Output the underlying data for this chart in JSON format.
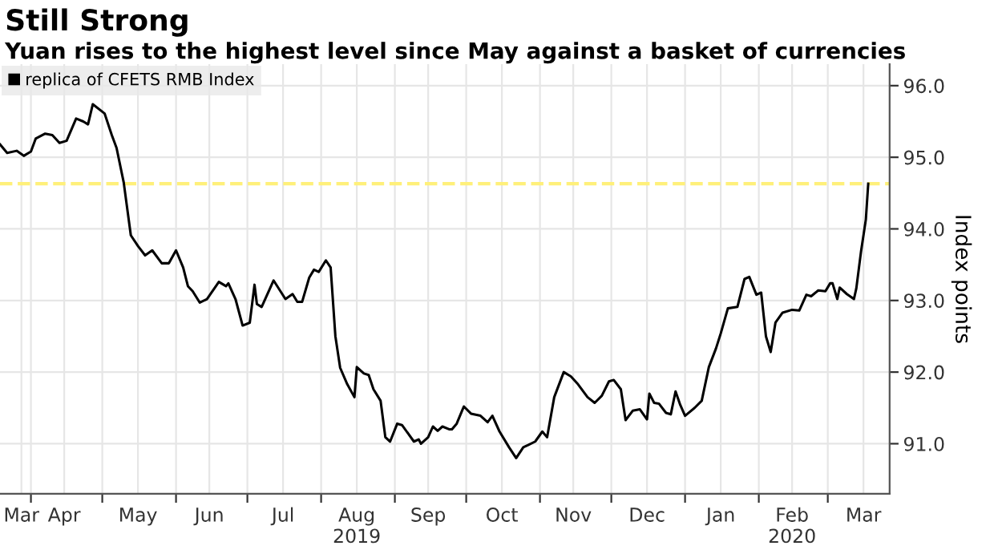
{
  "chart_data": {
    "type": "line",
    "title": "Still Strong",
    "subtitle": "Yuan rises to the highest level since May against a basket of currencies",
    "ylabel": "Index points",
    "x": [
      "2019-03-19",
      "2019-03-22",
      "2019-03-26",
      "2019-03-29",
      "2019-04-01",
      "2019-04-03",
      "2019-04-07",
      "2019-04-10",
      "2019-04-13",
      "2019-04-16",
      "2019-04-20",
      "2019-04-23",
      "2019-04-25",
      "2019-04-27",
      "2019-05-02",
      "2019-05-05",
      "2019-05-07",
      "2019-05-10",
      "2019-05-13",
      "2019-05-16",
      "2019-05-19",
      "2019-05-22",
      "2019-05-26",
      "2019-05-29",
      "2019-06-01",
      "2019-06-04",
      "2019-06-06",
      "2019-06-08",
      "2019-06-11",
      "2019-06-14",
      "2019-06-19",
      "2019-06-22",
      "2019-06-23",
      "2019-06-26",
      "2019-06-29",
      "2019-07-02",
      "2019-07-04",
      "2019-07-05",
      "2019-07-07",
      "2019-07-12",
      "2019-07-17",
      "2019-07-20",
      "2019-07-22",
      "2019-07-24",
      "2019-07-27",
      "2019-07-29",
      "2019-07-31",
      "2019-08-03",
      "2019-08-05",
      "2019-08-07",
      "2019-08-09",
      "2019-08-12",
      "2019-08-15",
      "2019-08-16",
      "2019-08-19",
      "2019-08-21",
      "2019-08-23",
      "2019-08-26",
      "2019-08-28",
      "2019-08-30",
      "2019-09-02",
      "2019-09-04",
      "2019-09-09",
      "2019-09-11",
      "2019-09-12",
      "2019-09-15",
      "2019-09-17",
      "2019-09-19",
      "2019-09-21",
      "2019-09-24",
      "2019-09-25",
      "2019-09-27",
      "2019-09-30",
      "2019-10-03",
      "2019-10-07",
      "2019-10-10",
      "2019-10-12",
      "2019-10-15",
      "2019-10-19",
      "2019-10-22",
      "2019-10-25",
      "2019-10-27",
      "2019-10-30",
      "2019-11-02",
      "2019-11-04",
      "2019-11-07",
      "2019-11-11",
      "2019-11-14",
      "2019-11-17",
      "2019-11-21",
      "2019-11-24",
      "2019-11-27",
      "2019-11-30",
      "2019-12-02",
      "2019-12-05",
      "2019-12-07",
      "2019-12-10",
      "2019-12-13",
      "2019-12-16",
      "2019-12-17",
      "2019-12-19",
      "2019-12-21",
      "2019-12-24",
      "2019-12-26",
      "2019-12-28",
      "2019-12-30",
      "2020-01-01",
      "2020-01-05",
      "2020-01-08",
      "2020-01-11",
      "2020-01-14",
      "2020-01-16",
      "2020-01-19",
      "2020-01-23",
      "2020-01-26",
      "2020-01-28",
      "2020-01-31",
      "2020-02-02",
      "2020-02-04",
      "2020-02-06",
      "2020-02-08",
      "2020-02-11",
      "2020-02-15",
      "2020-02-18",
      "2020-02-21",
      "2020-02-23",
      "2020-02-26",
      "2020-02-29",
      "2020-03-02",
      "2020-03-03",
      "2020-03-05",
      "2020-03-06",
      "2020-03-09",
      "2020-03-12",
      "2020-03-13",
      "2020-03-15",
      "2020-03-17",
      "2020-03-18"
    ],
    "series": [
      {
        "name": "replica of CFETS RMB Index",
        "color": "#000000",
        "values": [
          95.18,
          95.06,
          95.09,
          95.02,
          95.08,
          95.26,
          95.33,
          95.31,
          95.2,
          95.23,
          95.54,
          95.5,
          95.46,
          95.74,
          95.61,
          95.31,
          95.13,
          94.65,
          93.91,
          93.76,
          93.63,
          93.7,
          93.52,
          93.52,
          93.7,
          93.46,
          93.2,
          93.13,
          92.97,
          93.02,
          93.26,
          93.2,
          93.24,
          93.02,
          92.65,
          92.69,
          93.22,
          92.95,
          92.91,
          93.28,
          93.02,
          93.09,
          92.98,
          92.98,
          93.32,
          93.43,
          93.4,
          93.56,
          93.46,
          92.5,
          92.06,
          91.83,
          91.65,
          92.07,
          91.98,
          91.96,
          91.76,
          91.6,
          91.09,
          91.03,
          91.28,
          91.26,
          91.03,
          91.06,
          91.0,
          91.09,
          91.24,
          91.18,
          91.24,
          91.2,
          91.2,
          91.28,
          91.52,
          91.42,
          91.39,
          91.3,
          91.39,
          91.17,
          90.95,
          90.8,
          90.95,
          90.98,
          91.03,
          91.17,
          91.09,
          91.65,
          92.0,
          91.94,
          91.83,
          91.65,
          91.57,
          91.67,
          91.87,
          91.89,
          91.76,
          91.33,
          91.46,
          91.48,
          91.34,
          91.7,
          91.57,
          91.56,
          91.43,
          91.41,
          91.73,
          91.54,
          91.39,
          91.5,
          91.6,
          92.07,
          92.33,
          92.54,
          92.89,
          92.91,
          93.3,
          93.33,
          93.08,
          93.11,
          92.5,
          92.28,
          92.69,
          92.83,
          92.87,
          92.86,
          93.08,
          93.06,
          93.14,
          93.13,
          93.24,
          93.24,
          93.02,
          93.18,
          93.09,
          93.02,
          93.17,
          93.69,
          94.13,
          94.63
        ]
      }
    ],
    "xlim": [
      "2019-03-19",
      "2020-03-27"
    ],
    "xticks": [
      {
        "value": "2019-03-28",
        "label": "Mar"
      },
      {
        "value": "2019-04-01",
        "label": null
      },
      {
        "value": "2019-04-15",
        "label": "Apr"
      },
      {
        "value": "2019-05-01",
        "label": null
      },
      {
        "value": "2019-05-16",
        "label": "May"
      },
      {
        "value": "2019-06-01",
        "label": null
      },
      {
        "value": "2019-06-15",
        "label": "Jun"
      },
      {
        "value": "2019-07-01",
        "label": null
      },
      {
        "value": "2019-07-16",
        "label": "Jul"
      },
      {
        "value": "2019-08-01",
        "label": null
      },
      {
        "value": "2019-08-16",
        "label": "Aug\n2019"
      },
      {
        "value": "2019-09-01",
        "label": null
      },
      {
        "value": "2019-09-15",
        "label": "Sep"
      },
      {
        "value": "2019-10-01",
        "label": null
      },
      {
        "value": "2019-10-16",
        "label": "Oct"
      },
      {
        "value": "2019-11-01",
        "label": null
      },
      {
        "value": "2019-11-15",
        "label": "Nov"
      },
      {
        "value": "2019-12-01",
        "label": null
      },
      {
        "value": "2019-12-16",
        "label": "Dec"
      },
      {
        "value": "2020-01-01",
        "label": null
      },
      {
        "value": "2020-01-16",
        "label": "Jan"
      },
      {
        "value": "2020-02-01",
        "label": null
      },
      {
        "value": "2020-02-15",
        "label": "Feb\n2020"
      },
      {
        "value": "2020-03-01",
        "label": null
      },
      {
        "value": "2020-03-16",
        "label": "Mar"
      }
    ],
    "ylim": [
      90.3,
      96.3
    ],
    "yticks": [
      {
        "value": 91,
        "label": "91.0"
      },
      {
        "value": 92,
        "label": "92.0"
      },
      {
        "value": 93,
        "label": "93.0"
      },
      {
        "value": 94,
        "label": "94.0"
      },
      {
        "value": 95,
        "label": "95.0"
      },
      {
        "value": 96,
        "label": "96.0"
      }
    ],
    "ref_lines": [
      {
        "axis": "y",
        "value": 94.63,
        "color": "#fff07a",
        "line_style": "dashed"
      }
    ],
    "grid": true,
    "legend": "top left",
    "marker": "none",
    "line_style": "solid"
  }
}
